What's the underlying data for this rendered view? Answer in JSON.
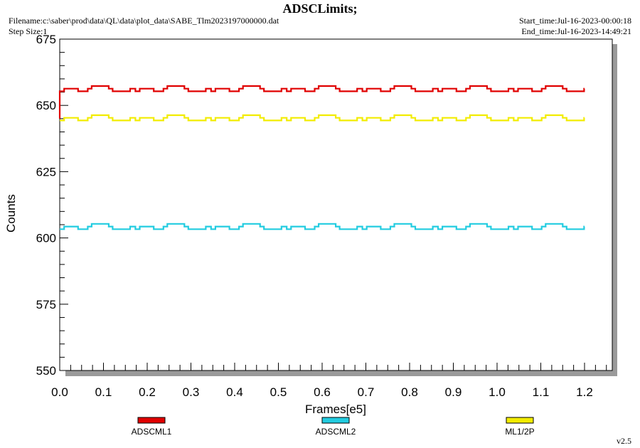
{
  "header": {
    "title": "ADSCLimits;",
    "filename": "Filename:c:\\saber\\prod\\data\\QL\\data\\plot_data\\SABE_Tlm2023197000000.dat",
    "step_size": "Step Size:1",
    "start_time": "Start_time:Jul-16-2023-00:00:18",
    "end_time": "End_time:Jul-16-2023-14:49:21"
  },
  "version": "v2.5",
  "chart_data": {
    "type": "line",
    "title": "ADSCLimits;",
    "xlabel": "Frames[e5]",
    "ylabel": "Counts",
    "xlim": [
      0.0,
      1.26
    ],
    "ylim": [
      550,
      675
    ],
    "x_ticks": [
      0.0,
      0.1,
      0.2,
      0.3,
      0.4,
      0.5,
      0.6,
      0.7,
      0.8,
      0.9,
      1.0,
      1.1,
      1.2
    ],
    "x_tick_labels": [
      "0.0",
      "0.1",
      "0.2",
      "0.3",
      "0.4",
      "0.5",
      "0.6",
      "0.7",
      "0.8",
      "0.9",
      "1.0",
      "1.1",
      "1.2"
    ],
    "y_ticks": [
      550,
      575,
      600,
      625,
      650,
      675
    ],
    "y_tick_labels": [
      "550",
      "575",
      "600",
      "625",
      "650",
      "675"
    ],
    "grid": false,
    "legend_position": "bottom",
    "period": 0.173,
    "profile_x": [
      0.0,
      0.006,
      0.01,
      0.022,
      0.042,
      0.058,
      0.064,
      0.073,
      0.104,
      0.112,
      0.121,
      0.134,
      0.161,
      0.173
    ],
    "profile_dy": [
      0,
      0,
      1,
      1,
      0,
      0,
      1,
      2,
      2,
      1,
      0,
      0,
      1,
      0
    ],
    "x_end": 1.2,
    "series": [
      {
        "name": "ADSCML1",
        "color": "#e00000",
        "base": 655.3,
        "start_value": 645
      },
      {
        "name": "ADSCML2",
        "color": "#22cce0",
        "base": 603.3
      },
      {
        "name": "ML1/2P",
        "color": "#f2ec00",
        "base": 644.3
      }
    ]
  }
}
